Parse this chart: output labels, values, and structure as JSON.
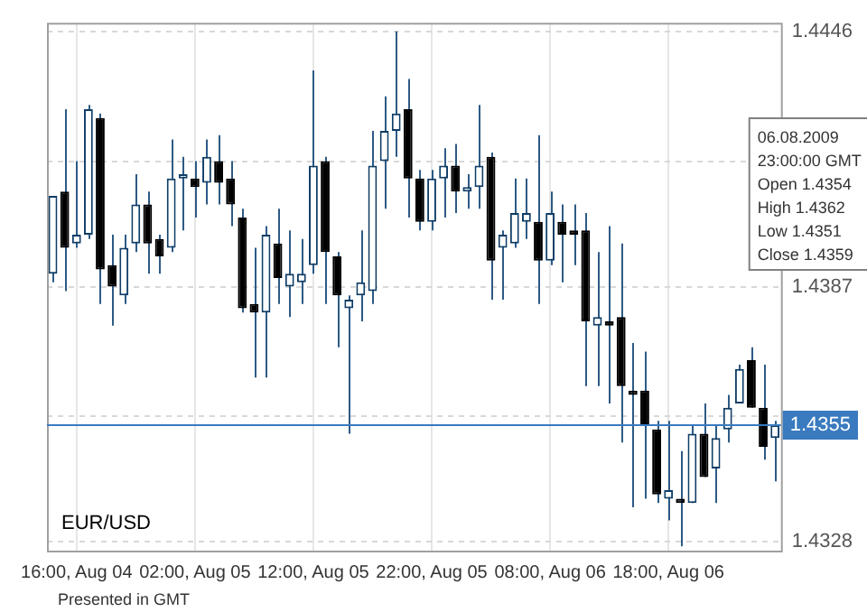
{
  "chart_data": {
    "type": "candlestick",
    "categories": [
      null,
      null,
      "16:00, Aug 04",
      null,
      null,
      null,
      null,
      null,
      null,
      null,
      null,
      null,
      "02:00, Aug 05",
      null,
      null,
      null,
      null,
      null,
      null,
      null,
      null,
      null,
      "12:00, Aug 05",
      null,
      null,
      null,
      null,
      null,
      null,
      null,
      null,
      null,
      "22:00, Aug 05",
      null,
      null,
      null,
      null,
      null,
      null,
      null,
      null,
      null,
      "08:00, Aug 06",
      null,
      null,
      null,
      null,
      null,
      null,
      null,
      null,
      null,
      "18:00, Aug 06",
      null,
      null,
      null,
      null,
      null,
      null,
      null,
      null,
      null
    ],
    "ohlc": [
      [
        1.439,
        1.4408,
        1.4388,
        1.4408
      ],
      [
        1.4409,
        1.4428,
        1.4386,
        1.4396
      ],
      [
        1.4397,
        1.4416,
        1.4396,
        1.4399
      ],
      [
        1.4399,
        1.4429,
        1.4398,
        1.4428
      ],
      [
        1.4426,
        1.4427,
        1.4383,
        1.4391
      ],
      [
        1.4392,
        1.4399,
        1.4378,
        1.4387
      ],
      [
        1.4385,
        1.4399,
        1.4383,
        1.4396
      ],
      [
        1.4397,
        1.4413,
        1.4395,
        1.4406
      ],
      [
        1.4406,
        1.4409,
        1.439,
        1.4397
      ],
      [
        1.4398,
        1.4399,
        1.439,
        1.4394
      ],
      [
        1.4396,
        1.4421,
        1.4395,
        1.4412
      ],
      [
        1.4412,
        1.4417,
        1.44,
        1.4413
      ],
      [
        1.4412,
        1.4416,
        1.4403,
        1.441
      ],
      [
        1.4411,
        1.4421,
        1.4406,
        1.4417
      ],
      [
        1.4416,
        1.4422,
        1.4406,
        1.4411
      ],
      [
        1.4412,
        1.4416,
        1.4401,
        1.4406
      ],
      [
        1.4403,
        1.4405,
        1.4381,
        1.4382
      ],
      [
        1.4383,
        1.4396,
        1.4366,
        1.4381
      ],
      [
        1.4381,
        1.4401,
        1.4366,
        1.4399
      ],
      [
        1.4397,
        1.4405,
        1.4383,
        1.4389
      ],
      [
        1.4387,
        1.44,
        1.438,
        1.439
      ],
      [
        1.4388,
        1.4398,
        1.4383,
        1.439
      ],
      [
        1.4392,
        1.4437,
        1.439,
        1.4415
      ],
      [
        1.4416,
        1.4417,
        1.4383,
        1.4395
      ],
      [
        1.4394,
        1.4395,
        1.4373,
        1.4385
      ],
      [
        1.4382,
        1.4385,
        1.4353,
        1.4384
      ],
      [
        1.4385,
        1.44,
        1.4379,
        1.4388
      ],
      [
        1.4386,
        1.4423,
        1.4383,
        1.4415
      ],
      [
        1.4416,
        1.4431,
        1.4405,
        1.4423
      ],
      [
        1.4423,
        1.4446,
        1.4417,
        1.4427
      ],
      [
        1.4428,
        1.4435,
        1.4403,
        1.4412
      ],
      [
        1.4412,
        1.4414,
        1.44,
        1.4402
      ],
      [
        1.4402,
        1.4414,
        1.44,
        1.4412
      ],
      [
        1.4412,
        1.4419,
        1.4403,
        1.4415
      ],
      [
        1.4415,
        1.442,
        1.4404,
        1.4409
      ],
      [
        1.4409,
        1.4413,
        1.4405,
        1.441
      ],
      [
        1.441,
        1.4429,
        1.4405,
        1.4415
      ],
      [
        1.4417,
        1.4418,
        1.4384,
        1.4393
      ],
      [
        1.4396,
        1.44,
        1.4384,
        1.4399
      ],
      [
        1.4397,
        1.4412,
        1.4396,
        1.4404
      ],
      [
        1.4402,
        1.4412,
        1.4398,
        1.4404
      ],
      [
        1.4402,
        1.4422,
        1.4383,
        1.4393
      ],
      [
        1.4393,
        1.4409,
        1.4392,
        1.4404
      ],
      [
        1.4402,
        1.4406,
        1.4388,
        1.4399
      ],
      [
        1.44,
        1.4406,
        1.4392,
        1.4399
      ],
      [
        1.44,
        1.4404,
        1.4364,
        1.4379
      ],
      [
        1.4378,
        1.4395,
        1.4364,
        1.438
      ],
      [
        1.4379,
        1.4401,
        1.436,
        1.4378
      ],
      [
        1.438,
        1.4397,
        1.4351,
        1.4364
      ],
      [
        1.4363,
        1.4374,
        1.4336,
        1.4362
      ],
      [
        1.4363,
        1.4372,
        1.4338,
        1.4355
      ],
      [
        1.4354,
        1.4356,
        1.4337,
        1.4339
      ],
      [
        1.4338,
        1.4356,
        1.4333,
        1.434
      ],
      [
        1.4338,
        1.4349,
        1.4327,
        1.4337
      ],
      [
        1.4337,
        1.4355,
        1.4337,
        1.4353
      ],
      [
        1.4353,
        1.436,
        1.4343,
        1.4343
      ],
      [
        1.4345,
        1.4355,
        1.4337,
        1.4352
      ],
      [
        1.4354,
        1.4362,
        1.4351,
        1.4359
      ],
      [
        1.436,
        1.4369,
        1.436,
        1.4368
      ],
      [
        1.437,
        1.4373,
        1.4359,
        1.4359
      ],
      [
        1.4359,
        1.4369,
        1.4347,
        1.435
      ],
      [
        1.4352,
        1.4356,
        1.4342,
        1.4355
      ]
    ],
    "ylim": [
      1.4326,
      1.4448
    ],
    "yticks": [
      1.4446,
      {
        "value": 1.4416,
        "label": null
      },
      1.4387,
      {
        "value": 1.4357,
        "label": null
      },
      1.4328
    ],
    "grid": true,
    "ref_lines": [
      {
        "axis": "y",
        "value": 1.4355,
        "label": "1.4355",
        "color": "#3a7abf"
      }
    ],
    "annotations": [
      "EUR/USD",
      "06.08.2009",
      "23:00:00 GMT",
      "Open 1.4354",
      "High 1.4362",
      "Low 1.4351",
      "Close 1.4359",
      "Presented in GMT"
    ]
  }
}
